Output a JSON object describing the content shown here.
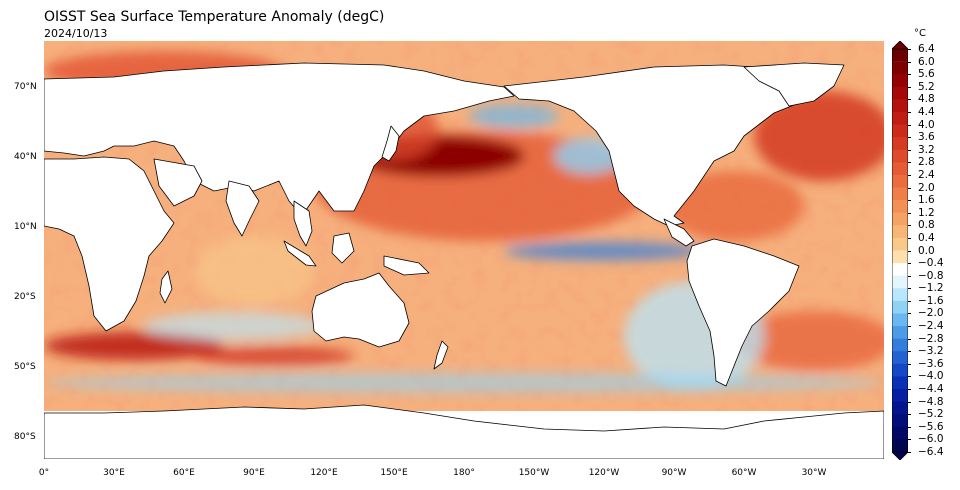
{
  "header": {
    "title": "OISST Sea Surface Temperature Anomaly (degC)",
    "date": "2024/10/13"
  },
  "axes": {
    "lat_labels": [
      "70°N",
      "40°N",
      "10°N",
      "20°S",
      "50°S",
      "80°S"
    ],
    "lon_labels": [
      "0°",
      "30°E",
      "60°E",
      "90°E",
      "120°E",
      "150°E",
      "180°",
      "150°W",
      "120°W",
      "90°W",
      "60°W",
      "30°W"
    ]
  },
  "colorbar": {
    "unit": "°C",
    "ticks": [
      "6.4",
      "6.0",
      "5.6",
      "5.2",
      "4.8",
      "4.4",
      "4.0",
      "3.6",
      "3.2",
      "2.8",
      "2.4",
      "2.0",
      "1.6",
      "1.2",
      "0.8",
      "0.4",
      "0.0",
      "−0.4",
      "−0.8",
      "−1.2",
      "−1.6",
      "−2.0",
      "−2.4",
      "−2.8",
      "−3.2",
      "−3.6",
      "−4.0",
      "−4.4",
      "−4.8",
      "−5.2",
      "−5.6",
      "−6.0",
      "−6.4"
    ],
    "colors": [
      "#6b0000",
      "#7f0000",
      "#930303",
      "#a50808",
      "#b3120d",
      "#c01e14",
      "#cc2a1b",
      "#d63a22",
      "#de4a2c",
      "#e55b35",
      "#ea6c3f",
      "#ef7e4a",
      "#f29056",
      "#f4a364",
      "#f7b676",
      "#f9c98b",
      "#fde0ad",
      "#ffffff",
      "#e4f6fd",
      "#b8e6fa",
      "#8fd2f6",
      "#6ab8ef",
      "#4c9be6",
      "#357ddb",
      "#2262d1",
      "#1448c4",
      "#0a31b5",
      "#061ea3",
      "#04148f",
      "#030e7a",
      "#020965",
      "#010550"
    ],
    "range": [
      -6.4,
      6.4
    ]
  },
  "colors": {
    "land": "#ffffff",
    "coastline": "#000000",
    "ocean_base": "#f6b07d"
  }
}
